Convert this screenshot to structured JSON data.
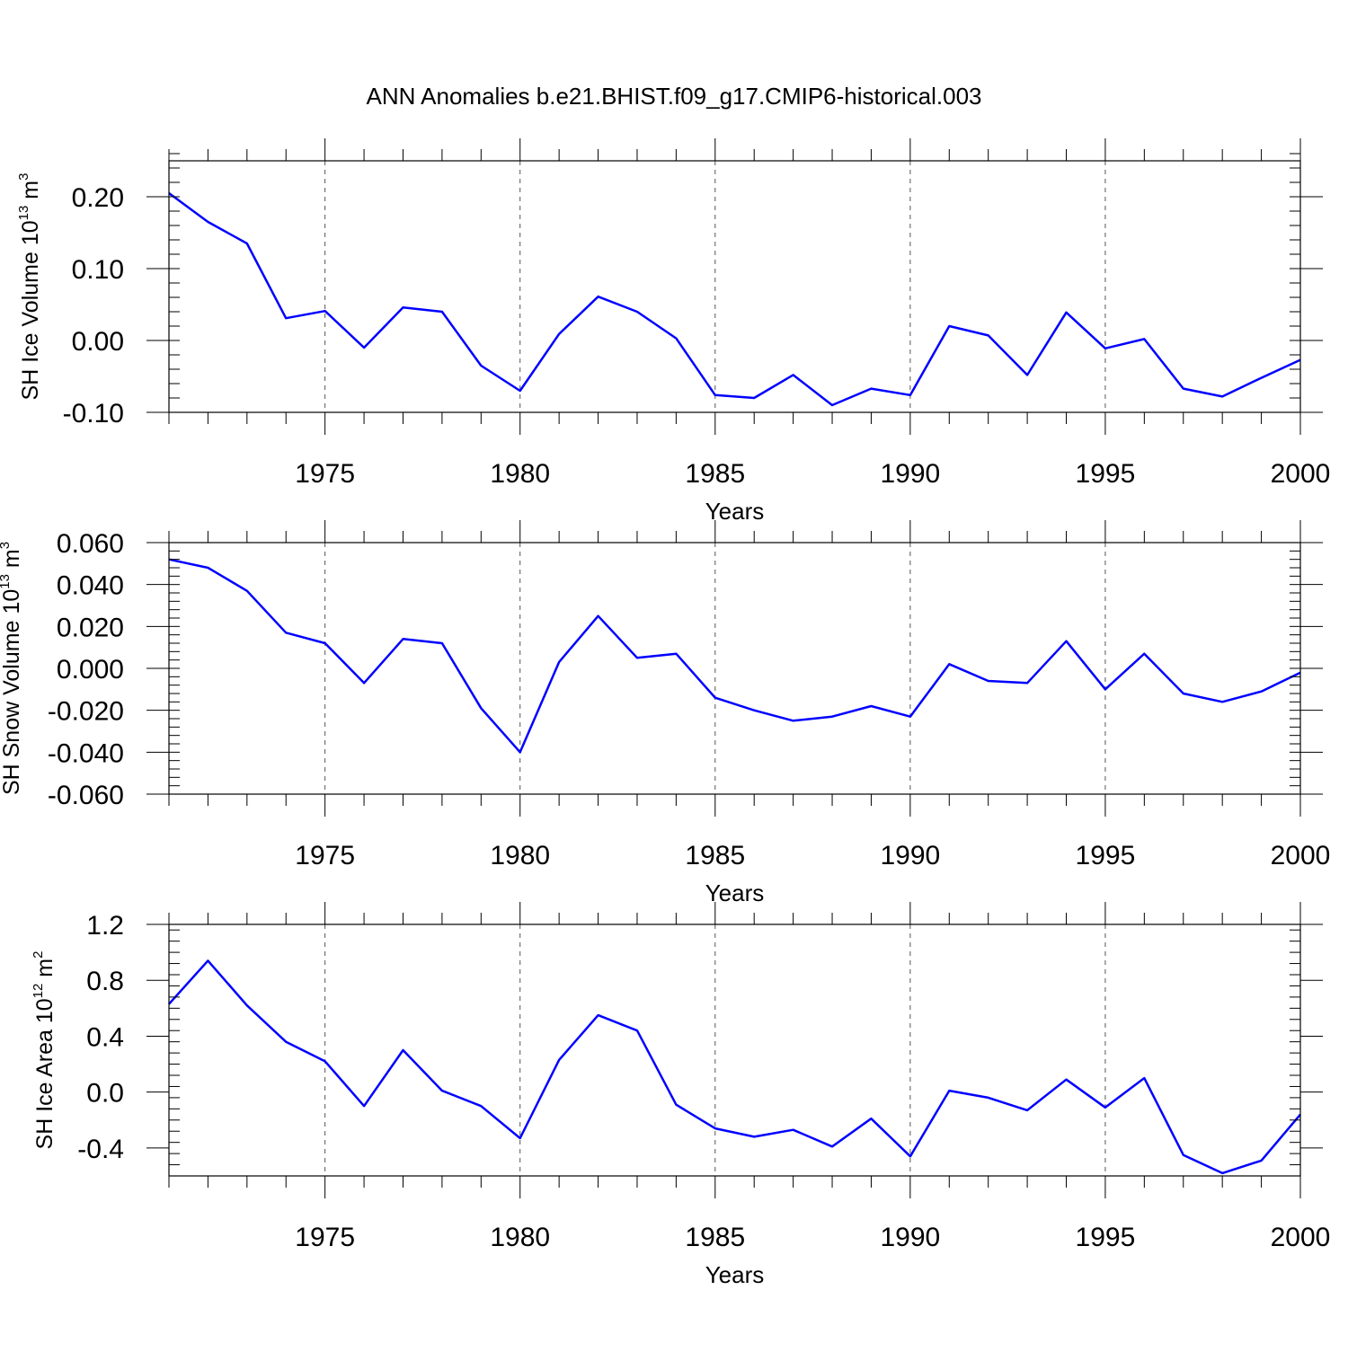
{
  "title": "ANN Anomalies b.e21.BHIST.f09_g17.CMIP6-historical.003",
  "colors": {
    "line": "#0000ff",
    "axis": "#000000",
    "grid": "#555555"
  },
  "chart_data": [
    {
      "type": "line",
      "ylabel": {
        "text": "SH Ice Volume 10",
        "sup": "13",
        "unit": " m",
        "unit_sup": "3"
      },
      "xlabel": "Years",
      "xlim": [
        1971,
        2000
      ],
      "ylim": [
        -0.1,
        0.25
      ],
      "y_ticks": [
        -0.1,
        0.0,
        0.1,
        0.2
      ],
      "y_tick_labels": [
        "-0.10",
        "0.00",
        "0.10",
        "0.20"
      ],
      "y_minor_step": 0.02,
      "x_ticks": [
        1975,
        1980,
        1985,
        1990,
        1995,
        2000
      ],
      "x_tick_labels": [
        "1975",
        "1980",
        "1985",
        "1990",
        "1995",
        "2000"
      ],
      "grid": "dashed vertical at major x ticks",
      "x": [
        1971,
        1972,
        1973,
        1974,
        1975,
        1976,
        1977,
        1978,
        1979,
        1980,
        1981,
        1982,
        1983,
        1984,
        1985,
        1986,
        1987,
        1988,
        1989,
        1990,
        1991,
        1992,
        1993,
        1994,
        1995,
        1996,
        1997,
        1998,
        1999,
        2000
      ],
      "series": [
        {
          "name": "SH Ice Volume",
          "values": [
            0.205,
            0.165,
            0.135,
            0.031,
            0.041,
            -0.01,
            0.046,
            0.04,
            -0.035,
            -0.07,
            0.009,
            0.061,
            0.04,
            0.003,
            -0.076,
            -0.08,
            -0.048,
            -0.09,
            -0.067,
            -0.076,
            0.02,
            0.007,
            -0.048,
            0.039,
            -0.011,
            0.002,
            -0.067,
            -0.078,
            -0.052,
            -0.027
          ]
        }
      ]
    },
    {
      "type": "line",
      "ylabel": {
        "text": "SH Snow Volume 10",
        "sup": "13",
        "unit": " m",
        "unit_sup": "3"
      },
      "xlabel": "Years",
      "xlim": [
        1971,
        2000
      ],
      "ylim": [
        -0.06,
        0.06
      ],
      "y_ticks": [
        -0.06,
        -0.04,
        -0.02,
        0.0,
        0.02,
        0.04,
        0.06
      ],
      "y_tick_labels": [
        "-0.060",
        "-0.040",
        "-0.020",
        "0.000",
        "0.020",
        "0.040",
        "0.060"
      ],
      "y_minor_step": 0.004,
      "x_ticks": [
        1975,
        1980,
        1985,
        1990,
        1995,
        2000
      ],
      "x_tick_labels": [
        "1975",
        "1980",
        "1985",
        "1990",
        "1995",
        "2000"
      ],
      "grid": "dashed vertical at major x ticks",
      "x": [
        1971,
        1972,
        1973,
        1974,
        1975,
        1976,
        1977,
        1978,
        1979,
        1980,
        1981,
        1982,
        1983,
        1984,
        1985,
        1986,
        1987,
        1988,
        1989,
        1990,
        1991,
        1992,
        1993,
        1994,
        1995,
        1996,
        1997,
        1998,
        1999,
        2000
      ],
      "series": [
        {
          "name": "SH Snow Volume",
          "values": [
            0.052,
            0.048,
            0.037,
            0.017,
            0.012,
            -0.007,
            0.014,
            0.012,
            -0.019,
            -0.04,
            0.003,
            0.025,
            0.005,
            0.007,
            -0.014,
            -0.02,
            -0.025,
            -0.023,
            -0.018,
            -0.023,
            0.002,
            -0.006,
            -0.007,
            0.013,
            -0.01,
            0.007,
            -0.012,
            -0.016,
            -0.011,
            -0.002
          ]
        }
      ]
    },
    {
      "type": "line",
      "ylabel": {
        "text": "SH Ice Area 10",
        "sup": "12",
        "unit": " m",
        "unit_sup": "2"
      },
      "xlabel": "Years",
      "xlim": [
        1971,
        2000
      ],
      "ylim": [
        -0.6,
        1.2
      ],
      "y_ticks": [
        -0.4,
        0.0,
        0.4,
        0.8,
        1.2
      ],
      "y_tick_labels": [
        "-0.4",
        "0.0",
        "0.4",
        "0.8",
        "1.2"
      ],
      "y_minor_step": 0.08,
      "x_ticks": [
        1975,
        1980,
        1985,
        1990,
        1995,
        2000
      ],
      "x_tick_labels": [
        "1975",
        "1980",
        "1985",
        "1990",
        "1995",
        "2000"
      ],
      "grid": "dashed vertical at major x ticks",
      "x": [
        1971,
        1972,
        1973,
        1974,
        1975,
        1976,
        1977,
        1978,
        1979,
        1980,
        1981,
        1982,
        1983,
        1984,
        1985,
        1986,
        1987,
        1988,
        1989,
        1990,
        1991,
        1992,
        1993,
        1994,
        1995,
        1996,
        1997,
        1998,
        1999,
        2000
      ],
      "series": [
        {
          "name": "SH Ice Area",
          "values": [
            0.63,
            0.94,
            0.62,
            0.36,
            0.22,
            -0.1,
            0.3,
            0.01,
            -0.1,
            -0.33,
            0.23,
            0.55,
            0.44,
            -0.09,
            -0.26,
            -0.32,
            -0.27,
            -0.39,
            -0.19,
            -0.46,
            0.01,
            -0.04,
            -0.13,
            0.09,
            -0.11,
            0.1,
            -0.45,
            -0.58,
            -0.49,
            -0.16
          ]
        }
      ]
    }
  ]
}
